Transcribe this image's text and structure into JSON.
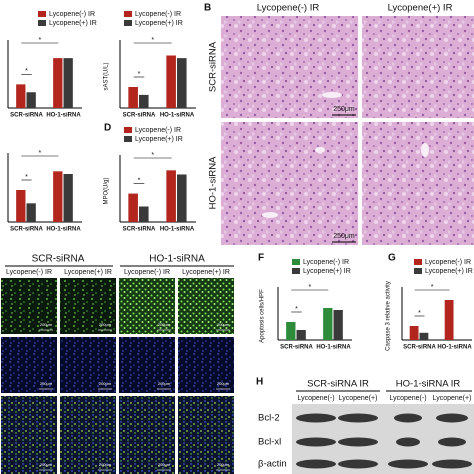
{
  "chart_data": [
    {
      "type": "bar",
      "categories": [
        "SCR-siRNA",
        "HO-1-siRNA"
      ],
      "series": [
        {
          "name": "Lycopene(-) IR",
          "color": "#b3261e",
          "values": [
            0.45,
            0.95
          ]
        },
        {
          "name": "Lycopene(+) IR",
          "color": "#3a3a3a",
          "values": [
            0.3,
            0.95
          ]
        }
      ],
      "ylim": [
        0,
        1.2
      ],
      "annotations": [
        "*",
        "*"
      ]
    },
    {
      "type": "bar",
      "ylabel": "sAST(U/L)",
      "categories": [
        "SCR-siRNA",
        "HO-1-siRNA"
      ],
      "series": [
        {
          "name": "Lycopene(-) IR",
          "color": "#b3261e",
          "values": [
            0.4,
            1.0
          ]
        },
        {
          "name": "Lycopene(+) IR",
          "color": "#3a3a3a",
          "values": [
            0.25,
            0.95
          ]
        }
      ],
      "ylim": [
        0,
        1.2
      ],
      "annotations": [
        "*",
        "*"
      ]
    },
    {
      "type": "bar",
      "categories": [
        "SCR-siRNA",
        "HO-1-siRNA"
      ],
      "series": [
        {
          "color": "#b3261e",
          "values": [
            0.6,
            0.95
          ]
        },
        {
          "color": "#3a3a3a",
          "values": [
            0.35,
            0.9
          ]
        }
      ],
      "ylim": [
        0,
        1.2
      ],
      "annotations": [
        "*",
        "*"
      ]
    },
    {
      "type": "bar",
      "label": "D",
      "ylabel": "MPO(U/g)",
      "categories": [
        "SCR-siRNA",
        "HO-1-siRNA"
      ],
      "series": [
        {
          "name": "Lycopene(-) IR",
          "color": "#b3261e",
          "values": [
            0.55,
            1.0
          ]
        },
        {
          "name": "Lycopene(+) IR",
          "color": "#3a3a3a",
          "values": [
            0.3,
            0.92
          ]
        }
      ],
      "ylim": [
        0,
        1.2
      ],
      "annotations": [
        "*",
        "*"
      ]
    },
    {
      "type": "bar",
      "label": "F",
      "ylabel": "Apoptosis cells/HPF",
      "categories": [
        "SCR-siRNA",
        "HO-1-siRNA"
      ],
      "series": [
        {
          "name": "Lycopene(-) IR",
          "color": "#2e8b3a",
          "values": [
            0.45,
            0.8
          ]
        },
        {
          "name": "Lycopene(+) IR",
          "color": "#3a3a3a",
          "values": [
            0.25,
            0.75
          ]
        }
      ],
      "ylim": [
        0,
        1.2
      ],
      "annotations": [
        "*",
        "*"
      ]
    },
    {
      "type": "bar",
      "label": "G",
      "ylabel": "Caspase 3 relative activity",
      "categories": [
        "SCR-siRNA",
        "HO-1-siRNA"
      ],
      "series": [
        {
          "name": "Lycopene(-) IR",
          "color": "#b3261e",
          "values": [
            0.35,
            1.0
          ]
        },
        {
          "name": "Lycopene(+) IR",
          "color": "#3a3a3a",
          "values": [
            0.18,
            null
          ]
        }
      ],
      "ylim": [
        0,
        1.2
      ],
      "annotations": [
        "*",
        "*"
      ]
    }
  ],
  "panels": {
    "B": {
      "label": "B",
      "columns": [
        "Lycopene(-) IR",
        "Lycopene(+) IR"
      ],
      "rows": [
        "SCR-siRNA",
        "HO-1-siRNA"
      ],
      "scale_bars": [
        "250μm",
        "250μm"
      ]
    },
    "E": {
      "groups": [
        "SCR-siRNA",
        "HO-1-siRNA"
      ],
      "columns": [
        "Lycopene(-) IR",
        "Lycopene(+) IR",
        "Lycopene(-) IR",
        "Lycopene(+) IR"
      ],
      "scale_bars": [
        "200μm",
        "200μm",
        "200μm",
        "200μm",
        "200μm",
        "200μm",
        "200μm",
        "200μm",
        "200μm",
        "200μm",
        "200μm",
        "200μm"
      ]
    },
    "H": {
      "label": "H",
      "groups": [
        "SCR-siRNA IR",
        "HO-1-siRNA IR"
      ],
      "columns": [
        "Lycopene(-)",
        "Lycopene(+)",
        "Lycopene(-)",
        "Lycopene(+)"
      ],
      "rows": [
        "Bcl-2",
        "Bcl-xl",
        "β-actin"
      ]
    }
  }
}
